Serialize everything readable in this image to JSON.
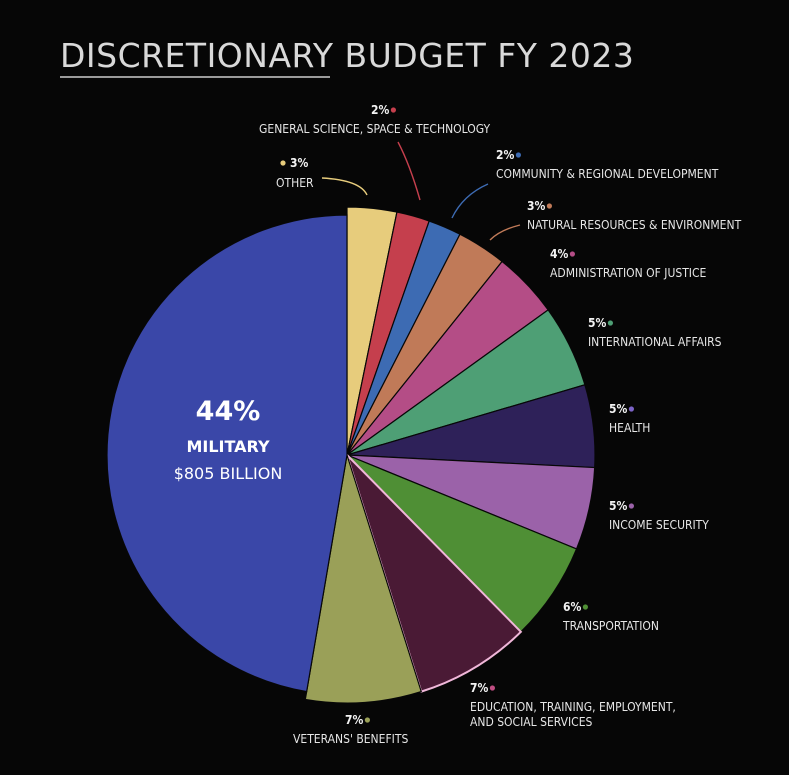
{
  "chart_data": {
    "type": "pie",
    "title": "DISCRETIONARY BUDGET FY 2023",
    "slices": [
      {
        "label": "MILITARY",
        "percent_label": "44%",
        "value": 44,
        "amount": "$805 BILLION",
        "color": "#3a47a8"
      },
      {
        "label": "OTHER",
        "percent_label": "3%",
        "value": 3,
        "color": "#e7cc7c"
      },
      {
        "label": "GENERAL SCIENCE, SPACE & TECHNOLOGY",
        "percent_label": "2%",
        "value": 2,
        "color": "#c53f4d"
      },
      {
        "label": "COMMUNITY & REGIONAL DEVELOPMENT",
        "percent_label": "2%",
        "value": 2,
        "color": "#3d6bb3"
      },
      {
        "label": "NATURAL RESOURCES & ENVIRONMENT",
        "percent_label": "3%",
        "value": 3,
        "color": "#c07a58"
      },
      {
        "label": "ADMINISTRATION OF JUSTICE",
        "percent_label": "4%",
        "value": 4,
        "color": "#b44d86"
      },
      {
        "label": "INTERNATIONAL AFFAIRS",
        "percent_label": "5%",
        "value": 5,
        "color": "#4e9f75"
      },
      {
        "label": "HEALTH",
        "percent_label": "5%",
        "value": 5,
        "color": "#2e2159"
      },
      {
        "label": "INCOME SECURITY",
        "percent_label": "5%",
        "value": 5,
        "color": "#9b62a9"
      },
      {
        "label": "TRANSPORTATION",
        "percent_label": "6%",
        "value": 6,
        "color": "#4f8f35"
      },
      {
        "label": "EDUCATION, TRAINING, EMPLOYMENT, AND SOCIAL SERVICES",
        "percent_label": "7%",
        "value": 7,
        "color": "#4a1a35"
      },
      {
        "label": "VETERANS' BENEFITS",
        "percent_label": "7%",
        "value": 7,
        "color": "#9aa058"
      }
    ]
  }
}
